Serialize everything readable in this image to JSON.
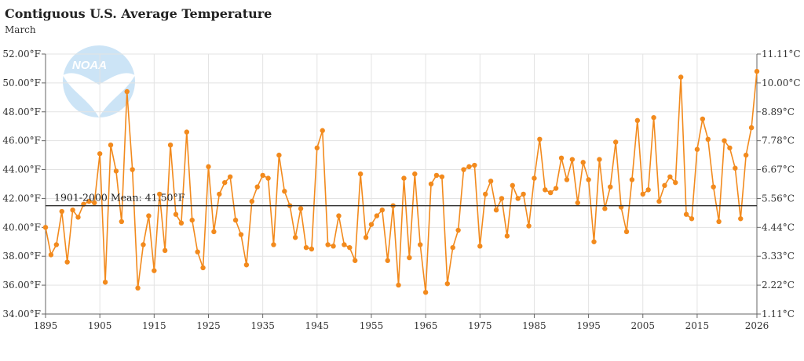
{
  "header": {
    "title": "Contiguous U.S. Average Temperature",
    "subtitle": "March"
  },
  "watermark": {
    "text": "NOAA",
    "icon": "noaa-logo-icon"
  },
  "colors": {
    "series": "#f28a1d",
    "mean_line": "#333333",
    "grid": "#e3e3e3",
    "axis": "#666666"
  },
  "chart_data": {
    "type": "line",
    "title": "Contiguous U.S. Average Temperature",
    "subtitle": "March",
    "xlim": [
      1895,
      2026
    ],
    "ylim": [
      34,
      52
    ],
    "x_ticks": [
      1895,
      1905,
      1915,
      1925,
      1935,
      1945,
      1955,
      1965,
      1975,
      1985,
      1995,
      2005,
      2015,
      2026
    ],
    "y_ticks_left": [
      "52.00°F",
      "50.00°F",
      "48.00°F",
      "46.00°F",
      "44.00°F",
      "42.00°F",
      "40.00°F",
      "38.00°F",
      "36.00°F",
      "34.00°F"
    ],
    "y_ticks_right": [
      "11.11°C",
      "10.00°C",
      "8.89°C",
      "7.78°C",
      "6.67°C",
      "5.56°C",
      "4.44°C",
      "3.33°C",
      "2.22°C",
      "1.11°C"
    ],
    "grid": true,
    "mean": {
      "label": "1901-2000 Mean: 41.50°F",
      "value": 41.5
    },
    "series": [
      {
        "start_year": 1895,
        "values": [
          40.0,
          38.1,
          38.8,
          41.1,
          37.6,
          41.2,
          40.7,
          41.6,
          41.8,
          41.7,
          45.1,
          36.2,
          45.7,
          43.9,
          40.4,
          49.4,
          44.0,
          35.8,
          38.8,
          40.8,
          37.0,
          42.3,
          38.4,
          45.7,
          40.9,
          40.3,
          46.6,
          40.5,
          38.3,
          37.2,
          44.2,
          39.7,
          42.3,
          43.1,
          43.5,
          40.5,
          39.5,
          37.4,
          41.8,
          42.8,
          43.6,
          43.4,
          38.8,
          45.0,
          42.5,
          41.5,
          39.3,
          41.3,
          38.6,
          38.5,
          45.5,
          46.7,
          38.8,
          38.7,
          40.8,
          38.8,
          38.6,
          37.7,
          43.7,
          39.3,
          40.2,
          40.8,
          41.2,
          37.7,
          41.5,
          36.0,
          43.4,
          37.9,
          43.7,
          38.8,
          35.5,
          43.0,
          43.6,
          43.5,
          36.1,
          38.6,
          39.8,
          44.0,
          44.2,
          44.3,
          38.7,
          42.3,
          43.2,
          41.2,
          42.0,
          39.4,
          42.9,
          42.0,
          42.3,
          40.1,
          43.4,
          46.1,
          42.6,
          42.4,
          42.7,
          44.8,
          43.3,
          44.7,
          41.7,
          44.5,
          43.3,
          39.0,
          44.7,
          41.3,
          42.8,
          45.9,
          41.4,
          39.7,
          43.3,
          47.4,
          42.3,
          42.6,
          47.6,
          41.8,
          42.9,
          43.5,
          43.1,
          50.4,
          40.9,
          40.6,
          45.4,
          47.5,
          46.1,
          42.8,
          40.4,
          46.0,
          45.5,
          44.1,
          40.6,
          45.0,
          46.9,
          50.8
        ]
      }
    ]
  }
}
